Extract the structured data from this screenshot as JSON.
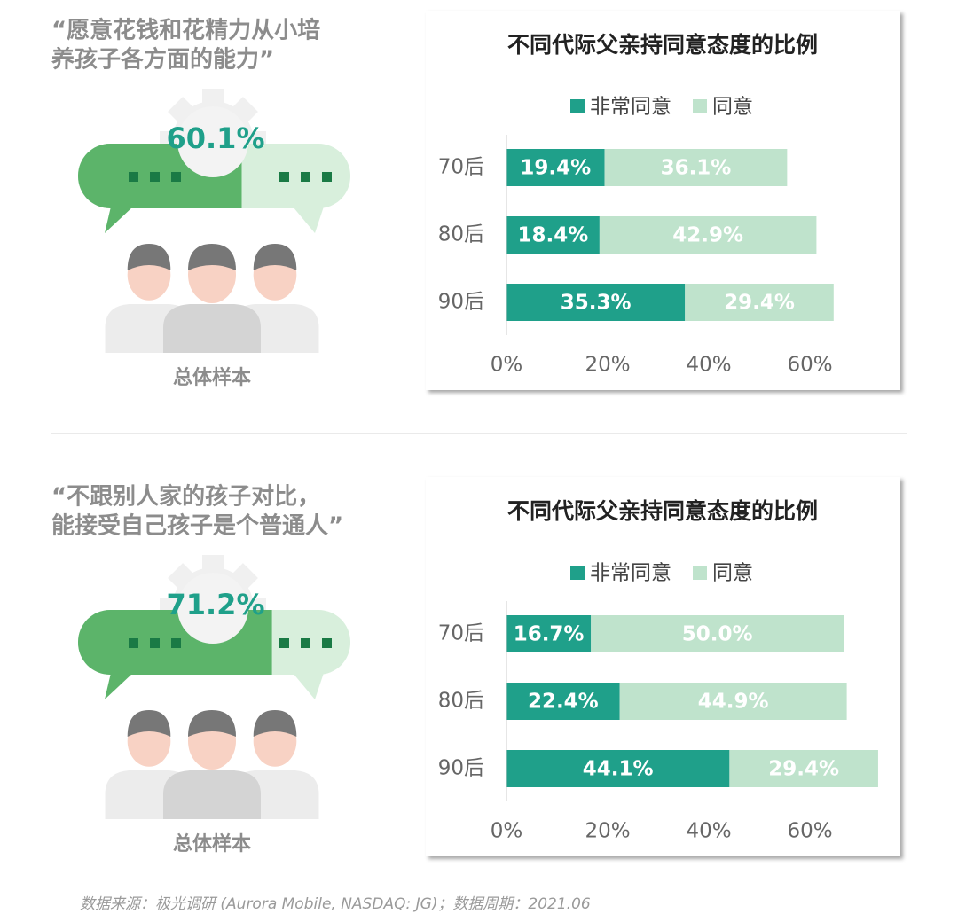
{
  "chart_data": [
    {
      "type": "bar",
      "orientation": "horizontal",
      "stacked": true,
      "title": "不同代际父亲持同意态度的比例",
      "categories": [
        "70后",
        "80后",
        "90后"
      ],
      "series": [
        {
          "name": "非常同意",
          "color": "#1fa08a",
          "values": [
            19.4,
            18.4,
            35.3
          ],
          "value_labels": [
            "19.4%",
            "18.4%",
            "35.3%"
          ]
        },
        {
          "name": "同意",
          "color": "#bfe3cc",
          "values": [
            36.1,
            42.9,
            29.4
          ],
          "value_labels": [
            "36.1%",
            "42.9%",
            "29.4%"
          ]
        }
      ],
      "xlim": [
        0,
        70
      ],
      "xticks": [
        {
          "value": 0,
          "label": "0%"
        },
        {
          "value": 20,
          "label": "20%"
        },
        {
          "value": 40,
          "label": "40%"
        },
        {
          "value": 60,
          "label": "60%"
        }
      ]
    },
    {
      "type": "bar",
      "orientation": "horizontal",
      "stacked": true,
      "title": "不同代际父亲持同意态度的比例",
      "categories": [
        "70后",
        "80后",
        "90后"
      ],
      "series": [
        {
          "name": "非常同意",
          "color": "#1fa08a",
          "values": [
            16.7,
            22.4,
            44.1
          ],
          "value_labels": [
            "16.7%",
            "22.4%",
            "44.1%"
          ]
        },
        {
          "name": "同意",
          "color": "#bfe3cc",
          "values": [
            50.0,
            44.9,
            29.4
          ],
          "value_labels": [
            "50.0%",
            "44.9%",
            "29.4%"
          ]
        }
      ],
      "xlim": [
        0,
        70
      ],
      "xticks": [
        {
          "value": 0,
          "label": "0%"
        },
        {
          "value": 20,
          "label": "20%"
        },
        {
          "value": 40,
          "label": "40%"
        },
        {
          "value": 60,
          "label": "60%"
        }
      ]
    }
  ],
  "highlights": [
    {
      "quote": [
        "“愿意花钱和花精力从小培",
        "养孩子各方面的能力”"
      ],
      "value": 60.1,
      "label": "60.1%",
      "sample": "总体样本"
    },
    {
      "quote": [
        "“不跟别人家的孩子对比，",
        "能接受自己孩子是个普通人”"
      ],
      "value": 71.2,
      "label": "71.2%",
      "sample": "总体样本"
    }
  ],
  "source": "数据来源：极光调研 (Aurora Mobile, NASDAQ: JG)；数据周期：2021.06"
}
